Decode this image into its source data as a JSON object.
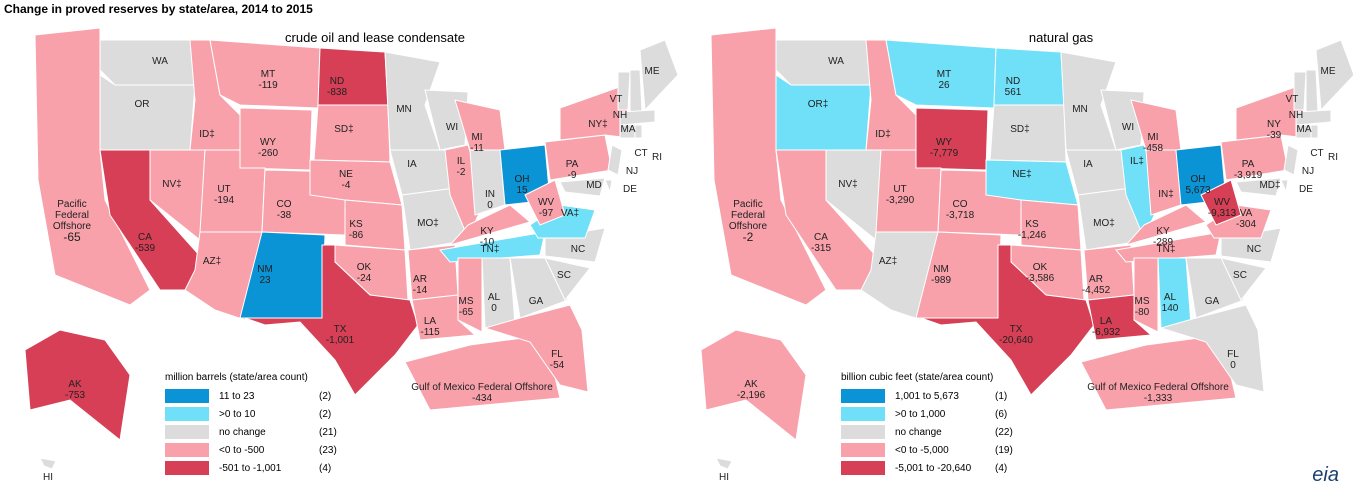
{
  "title": "Change in proved reserves by state/area, 2014 to 2015",
  "logo": "eia",
  "maps": [
    {
      "subtitle": "crude oil and lease condensate",
      "legend": {
        "title": "million barrels (state/area count)",
        "items": [
          {
            "color": "#0a93d5",
            "label": "11 to 23",
            "count": "(2)"
          },
          {
            "color": "#6fe0f7",
            "label": ">0 to 10",
            "count": "(2)"
          },
          {
            "color": "#dcdcdc",
            "label": "no change",
            "count": "(21)"
          },
          {
            "color": "#f8a1ab",
            "label": "<0 to -500",
            "count": "(23)"
          },
          {
            "color": "#d63f55",
            "label": "-501 to -1,001",
            "count": "(4)"
          }
        ]
      },
      "states": [
        {
          "name": "Pacific Federal Offshore",
          "value": "-65",
          "class": 3
        },
        {
          "name": "Gulf of Mexico Federal Offshore",
          "value": "-434",
          "class": 3
        },
        {
          "name": "WA",
          "class": 2
        },
        {
          "name": "OR",
          "class": 2
        },
        {
          "name": "CA",
          "value": "-539",
          "class": 4
        },
        {
          "name": "NV‡",
          "class": 3
        },
        {
          "name": "ID‡",
          "class": 3
        },
        {
          "name": "MT",
          "value": "-119",
          "class": 3
        },
        {
          "name": "WY",
          "value": "-260",
          "class": 3
        },
        {
          "name": "UT",
          "value": "-194",
          "class": 3
        },
        {
          "name": "CO",
          "value": "-38",
          "class": 3
        },
        {
          "name": "AZ‡",
          "class": 3
        },
        {
          "name": "NM",
          "value": "23",
          "class": 0
        },
        {
          "name": "ND",
          "value": "-838",
          "class": 4
        },
        {
          "name": "SD‡",
          "class": 3
        },
        {
          "name": "NE",
          "value": "-4",
          "class": 3
        },
        {
          "name": "KS",
          "value": "-86",
          "class": 3
        },
        {
          "name": "OK",
          "value": "-24",
          "class": 3
        },
        {
          "name": "TX",
          "value": "-1,001",
          "class": 4
        },
        {
          "name": "MN",
          "class": 2
        },
        {
          "name": "IA",
          "class": 2
        },
        {
          "name": "MO‡",
          "class": 2
        },
        {
          "name": "AR",
          "value": "-14",
          "class": 3
        },
        {
          "name": "LA",
          "value": "-115",
          "class": 3
        },
        {
          "name": "WI",
          "class": 2
        },
        {
          "name": "IL",
          "value": "-2",
          "class": 3
        },
        {
          "name": "MI",
          "value": "-11",
          "class": 3
        },
        {
          "name": "IN",
          "value": "0",
          "class": 2
        },
        {
          "name": "OH",
          "value": "15",
          "class": 0
        },
        {
          "name": "KY",
          "value": "-10",
          "class": 3
        },
        {
          "name": "TN‡",
          "class": 1
        },
        {
          "name": "MS",
          "value": "-65",
          "class": 3
        },
        {
          "name": "AL",
          "value": "0",
          "class": 2
        },
        {
          "name": "GA",
          "class": 2
        },
        {
          "name": "FL",
          "value": "-54",
          "class": 3
        },
        {
          "name": "SC",
          "class": 2
        },
        {
          "name": "NC",
          "class": 2
        },
        {
          "name": "VA‡",
          "class": 1
        },
        {
          "name": "WV",
          "value": "-97",
          "class": 3
        },
        {
          "name": "PA",
          "value": "-9",
          "class": 3
        },
        {
          "name": "NY‡",
          "class": 3
        },
        {
          "name": "NJ",
          "class": 2
        },
        {
          "name": "DE",
          "class": 2
        },
        {
          "name": "MD",
          "class": 2
        },
        {
          "name": "VT",
          "class": 2
        },
        {
          "name": "NH",
          "class": 2
        },
        {
          "name": "ME",
          "class": 2
        },
        {
          "name": "MA",
          "class": 2
        },
        {
          "name": "CT",
          "class": 2
        },
        {
          "name": "RI",
          "class": 2
        },
        {
          "name": "AK",
          "value": "-753",
          "class": 4
        },
        {
          "name": "HI",
          "class": 2
        }
      ]
    },
    {
      "subtitle": "natural gas",
      "legend": {
        "title": "billion cubic feet (state/area count)",
        "items": [
          {
            "color": "#0a93d5",
            "label": "1,001 to 5,673",
            "count": "(1)"
          },
          {
            "color": "#6fe0f7",
            "label": ">0 to 1,000",
            "count": "(6)"
          },
          {
            "color": "#dcdcdc",
            "label": "no change",
            "count": "(22)"
          },
          {
            "color": "#f8a1ab",
            "label": "<0 to -5,000",
            "count": "(19)"
          },
          {
            "color": "#d63f55",
            "label": "-5,001 to -20,640",
            "count": "(4)"
          }
        ]
      },
      "states": [
        {
          "name": "Pacific Federal Offshore",
          "value": "-2",
          "class": 3
        },
        {
          "name": "Gulf of Mexico Federal Offshore",
          "value": "-1,333",
          "class": 3
        },
        {
          "name": "WA",
          "class": 2
        },
        {
          "name": "OR‡",
          "class": 1
        },
        {
          "name": "CA",
          "value": "-315",
          "class": 3
        },
        {
          "name": "NV‡",
          "class": 2
        },
        {
          "name": "ID‡",
          "class": 3
        },
        {
          "name": "MT",
          "value": "26",
          "class": 1
        },
        {
          "name": "WY",
          "value": "-7,779",
          "class": 4
        },
        {
          "name": "UT",
          "value": "-3,290",
          "class": 3
        },
        {
          "name": "CO",
          "value": "-3,718",
          "class": 3
        },
        {
          "name": "AZ‡",
          "class": 2
        },
        {
          "name": "NM",
          "value": "-989",
          "class": 3
        },
        {
          "name": "ND",
          "value": "561",
          "class": 1
        },
        {
          "name": "SD‡",
          "class": 2
        },
        {
          "name": "NE‡",
          "class": 1
        },
        {
          "name": "KS",
          "value": "-1,246",
          "class": 3
        },
        {
          "name": "OK",
          "value": "-3,586",
          "class": 3
        },
        {
          "name": "TX",
          "value": "-20,640",
          "class": 4
        },
        {
          "name": "MN",
          "class": 2
        },
        {
          "name": "IA",
          "class": 2
        },
        {
          "name": "MO‡",
          "class": 2
        },
        {
          "name": "AR",
          "value": "-4,452",
          "class": 3
        },
        {
          "name": "LA",
          "value": "-6,932",
          "class": 4
        },
        {
          "name": "WI",
          "class": 2
        },
        {
          "name": "IL‡",
          "class": 1
        },
        {
          "name": "MI",
          "value": "-458",
          "class": 3
        },
        {
          "name": "IN‡",
          "class": 3
        },
        {
          "name": "OH",
          "value": "5,673",
          "class": 0
        },
        {
          "name": "KY",
          "value": "-289",
          "class": 3
        },
        {
          "name": "TN‡",
          "class": 3
        },
        {
          "name": "MS",
          "value": "-80",
          "class": 3
        },
        {
          "name": "AL",
          "value": "140",
          "class": 1
        },
        {
          "name": "GA",
          "class": 2
        },
        {
          "name": "FL",
          "value": "0",
          "class": 2
        },
        {
          "name": "SC",
          "class": 2
        },
        {
          "name": "NC",
          "class": 2
        },
        {
          "name": "VA",
          "value": "-304",
          "class": 3
        },
        {
          "name": "WV",
          "value": "-9,313",
          "class": 4
        },
        {
          "name": "PA",
          "value": "-3,919",
          "class": 3
        },
        {
          "name": "NY",
          "value": "-39",
          "class": 3
        },
        {
          "name": "NJ",
          "class": 2
        },
        {
          "name": "DE",
          "class": 2
        },
        {
          "name": "MD‡",
          "class": 2
        },
        {
          "name": "VT",
          "class": 2
        },
        {
          "name": "NH",
          "class": 2
        },
        {
          "name": "ME",
          "class": 2
        },
        {
          "name": "MA",
          "class": 2
        },
        {
          "name": "CT",
          "class": 2
        },
        {
          "name": "RI",
          "class": 2
        },
        {
          "name": "AK",
          "value": "-2,196",
          "class": 3
        },
        {
          "name": "HI",
          "class": 2
        }
      ]
    }
  ]
}
